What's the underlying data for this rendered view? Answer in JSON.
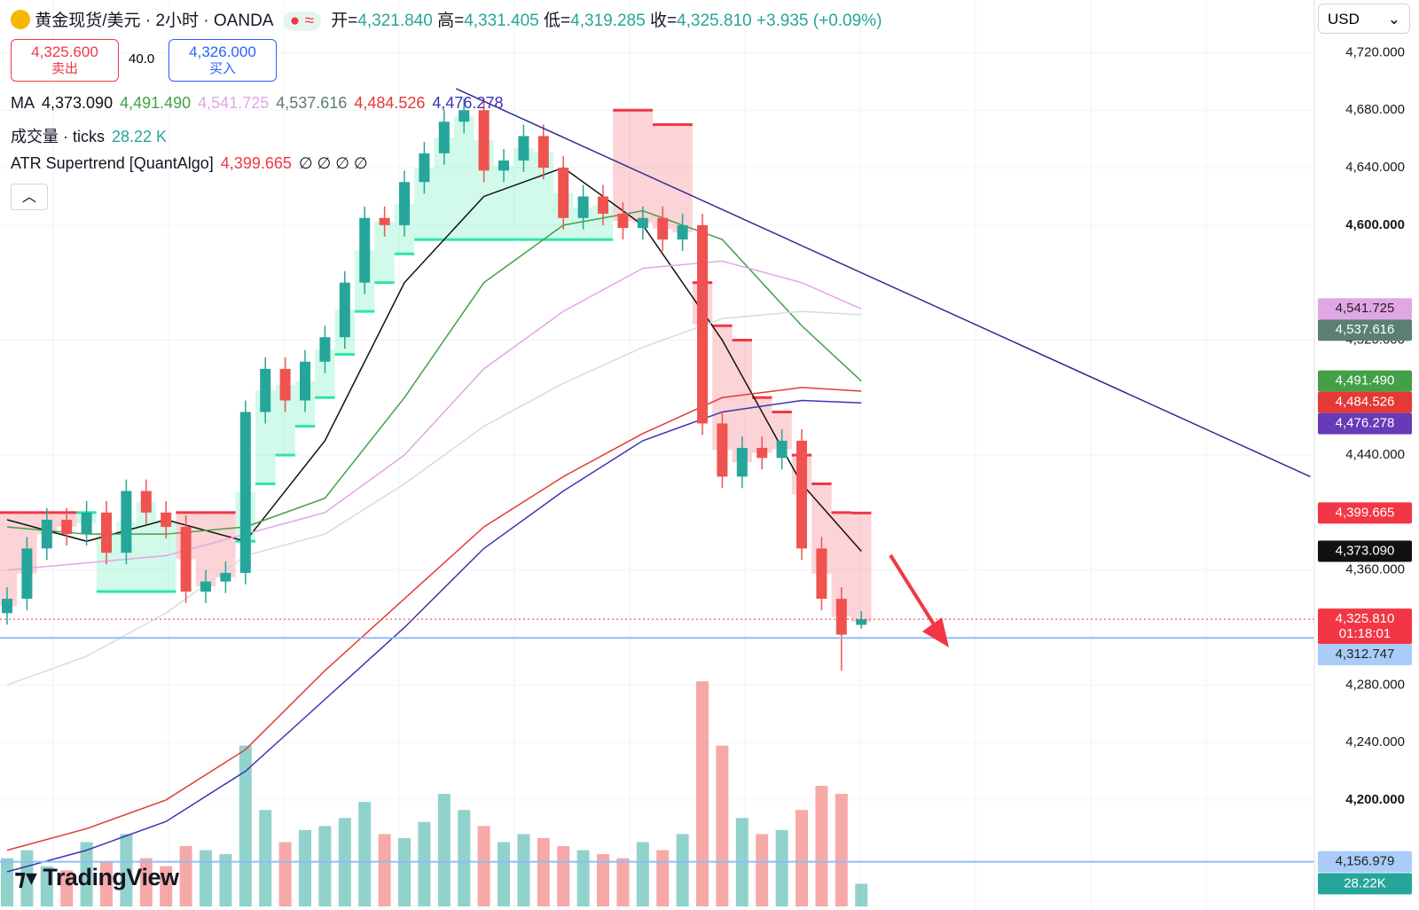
{
  "header": {
    "symbol": "黄金现货/美元 · 2小时 · OANDA",
    "open_label": "开=",
    "open": "4,321.840",
    "high_label": "高=",
    "high": "4,331.405",
    "low_label": "低=",
    "low": "4,319.285",
    "close_label": "收=",
    "close": "4,325.810",
    "change": "+3.935 (+0.09%)",
    "currency": "USD"
  },
  "quote": {
    "sell": "4,325.600",
    "sell_label": "卖出",
    "spread": "40.0",
    "buy": "4,326.000",
    "buy_label": "买入"
  },
  "legend": {
    "ma_label": "MA",
    "volume_label": "成交量 · ticks",
    "volume_value": "28.22 K",
    "supertrend_label": "ATR Supertrend [QuantAlgo]",
    "supertrend_value": "4,399.665",
    "supertrend_flags": "∅ ∅ ∅ ∅"
  },
  "logo": "TradingView",
  "chart_data": {
    "type": "candlestick",
    "ylim": [
      4123.4,
      4756.7
    ],
    "yticks": [
      {
        "value": 4720,
        "label": "4,720.000"
      },
      {
        "value": 4680,
        "label": "4,680.000"
      },
      {
        "value": 4640,
        "label": "4,640.000"
      },
      {
        "value": 4600,
        "label": "4,600.000",
        "bold": true
      },
      {
        "value": 4520,
        "label": "4,520.000"
      },
      {
        "value": 4440,
        "label": "4,440.000"
      },
      {
        "value": 4360,
        "label": "4,360.000"
      },
      {
        "value": 4280,
        "label": "4,280.000"
      },
      {
        "value": 4240,
        "label": "4,240.000"
      },
      {
        "value": 4200,
        "label": "4,200.000",
        "bold": true
      }
    ],
    "grid": true,
    "up_color": "#26a69a",
    "down_color": "#ef5350",
    "open": [
      4330,
      4340,
      4375,
      4395,
      4385,
      4400,
      4372,
      4415,
      4400,
      4390,
      4345,
      4352,
      4358,
      4470,
      4500,
      4478,
      4505,
      4522,
      4560,
      4605,
      4600,
      4630,
      4650,
      4672,
      4680,
      4638,
      4645,
      4662,
      4640,
      4605,
      4620,
      4608,
      4598,
      4605,
      4590,
      4600,
      4462,
      4425,
      4445,
      4438,
      4450,
      4375,
      4340,
      4321.84
    ],
    "high": [
      4348,
      4383,
      4403,
      4403,
      4408,
      4408,
      4423,
      4423,
      4408,
      4398,
      4360,
      4366,
      4478,
      4508,
      4508,
      4513,
      4530,
      4568,
      4613,
      4613,
      4638,
      4658,
      4680,
      4688,
      4688,
      4653,
      4670,
      4670,
      4648,
      4628,
      4628,
      4616,
      4613,
      4613,
      4608,
      4608,
      4470,
      4453,
      4453,
      4458,
      4458,
      4383,
      4348,
      4331.405
    ],
    "low": [
      4322,
      4332,
      4367,
      4377,
      4377,
      4364,
      4364,
      4392,
      4382,
      4337,
      4337,
      4344,
      4350,
      4462,
      4470,
      4470,
      4497,
      4514,
      4552,
      4592,
      4592,
      4622,
      4642,
      4664,
      4630,
      4630,
      4637,
      4632,
      4597,
      4597,
      4600,
      4590,
      4590,
      4582,
      4582,
      4454,
      4417,
      4417,
      4430,
      4430,
      4367,
      4332,
      4290,
      4319.285
    ],
    "close": [
      4340,
      4375,
      4395,
      4385,
      4400,
      4372,
      4415,
      4400,
      4390,
      4345,
      4352,
      4358,
      4470,
      4500,
      4478,
      4505,
      4522,
      4560,
      4605,
      4600,
      4630,
      4650,
      4672,
      4680,
      4638,
      4645,
      4662,
      4640,
      4605,
      4620,
      4608,
      4598,
      4605,
      4590,
      4600,
      4462,
      4425,
      4445,
      4438,
      4450,
      4375,
      4340,
      4315,
      4325.81
    ],
    "volume": [
      60,
      70,
      50,
      45,
      80,
      55,
      90,
      60,
      50,
      75,
      70,
      65,
      200,
      120,
      80,
      95,
      100,
      110,
      130,
      90,
      85,
      105,
      140,
      120,
      100,
      80,
      90,
      85,
      75,
      70,
      65,
      60,
      80,
      70,
      90,
      280,
      200,
      110,
      90,
      95,
      120,
      150,
      140,
      28.22
    ],
    "volume_lim": [
      0,
      300
    ],
    "supertrend": {
      "values": [
        4400,
        4400,
        4400,
        4400,
        4400,
        4345,
        4345,
        4345,
        4345,
        4400,
        4400,
        4400,
        4380,
        4420,
        4440,
        4460,
        4480,
        4510,
        4540,
        4560,
        4580,
        4590,
        4590,
        4590,
        4590,
        4590,
        4590,
        4590,
        4590,
        4590,
        4590,
        4680,
        4680,
        4670,
        4670,
        4560,
        4530,
        4520,
        4480,
        4470,
        4440,
        4420,
        4400,
        4399.665
      ],
      "up_color": "#2ee6a5",
      "down_color": "#f23645"
    },
    "series": [
      {
        "color": "#111111",
        "last_label": "4,373.090",
        "x": [
          0,
          4,
          8,
          12,
          16,
          20,
          24,
          28,
          32,
          36,
          40,
          43
        ],
        "values": [
          4395,
          4380,
          4395,
          4380,
          4450,
          4560,
          4620,
          4640,
          4600,
          4520,
          4420,
          4373.09
        ]
      },
      {
        "color": "#43a047",
        "last_label": "4,491.490",
        "x": [
          0,
          4,
          8,
          12,
          16,
          20,
          24,
          28,
          32,
          36,
          40,
          43
        ],
        "values": [
          4390,
          4385,
          4385,
          4390,
          4410,
          4480,
          4560,
          4600,
          4610,
          4590,
          4530,
          4491.49
        ]
      },
      {
        "color": "#e1a6e6",
        "last_label": "4,541.725",
        "x": [
          0,
          4,
          8,
          12,
          16,
          20,
          24,
          28,
          32,
          36,
          40,
          43
        ],
        "values": [
          4360,
          4365,
          4370,
          4385,
          4400,
          4440,
          4500,
          4540,
          4570,
          4575,
          4560,
          4541.725
        ]
      },
      {
        "color": "#d6ddd8",
        "last_label": "4,537.616",
        "x": [
          0,
          4,
          8,
          12,
          16,
          20,
          24,
          28,
          32,
          36,
          40,
          43
        ],
        "values": [
          4280,
          4300,
          4330,
          4370,
          4385,
          4420,
          4460,
          4490,
          4515,
          4535,
          4540,
          4537.616
        ]
      },
      {
        "color": "#e53935",
        "last_label": "4,484.526",
        "x": [
          0,
          4,
          8,
          12,
          16,
          20,
          24,
          28,
          32,
          36,
          40,
          43
        ],
        "values": [
          4165,
          4180,
          4200,
          4235,
          4290,
          4340,
          4390,
          4425,
          4455,
          4480,
          4487,
          4484.526
        ]
      },
      {
        "color": "#3f33b5",
        "last_label": "4,476.278",
        "x": [
          0,
          4,
          8,
          12,
          16,
          20,
          24,
          28,
          32,
          36,
          40,
          43
        ],
        "values": [
          4150,
          4165,
          4185,
          4220,
          4270,
          4320,
          4375,
          4415,
          4450,
          4470,
          4478,
          4476.278
        ]
      }
    ],
    "trendline": {
      "x": [
        22.6,
        65.6
      ],
      "values": [
        4695,
        4425
      ],
      "color": "#2f2f8f"
    },
    "hlines": [
      {
        "value": 4312.747,
        "color": "#90bdf5"
      },
      {
        "value": 4156.979,
        "color": "#90bdf5"
      },
      {
        "value": 4325.81,
        "color": "#f23645",
        "dotted": true
      }
    ],
    "badges": [
      {
        "value": 4541.725,
        "label": "4,541.725",
        "color": "#e1a6e6",
        "text_color": "#222222"
      },
      {
        "value": 4537.616,
        "label": "4,537.616",
        "color": "#5b7f70",
        "text_color": "#ffffff"
      },
      {
        "value": 4491.49,
        "label": "4,491.490",
        "color": "#43a047",
        "text_color": "#ffffff"
      },
      {
        "value": 4484.526,
        "label": "4,484.526",
        "color": "#e53935",
        "text_color": "#ffffff"
      },
      {
        "value": 4476.278,
        "label": "4,476.278",
        "color": "#673ab7",
        "text_color": "#ffffff"
      },
      {
        "value": 4399.665,
        "label": "4,399.665",
        "color": "#f23645",
        "text_color": "#ffffff"
      },
      {
        "value": 4373.09,
        "label": "4,373.090",
        "color": "#111111",
        "text_color": "#ffffff"
      },
      {
        "value": 4325.81,
        "label": "4,325.810",
        "sublabel": "01:18:01",
        "color": "#f23645",
        "text_color": "#ffffff"
      },
      {
        "value": 4312.747,
        "label": "4,312.747",
        "color": "#a9cdf8",
        "text_color": "#222222"
      },
      {
        "value": 4156.979,
        "label": "4,156.979",
        "color": "#a9cdf8",
        "text_color": "#222222"
      },
      {
        "value": 28.22,
        "label": "28.22K",
        "color": "#26a69a",
        "text_color": "#ffffff",
        "scale": "volume"
      }
    ]
  }
}
